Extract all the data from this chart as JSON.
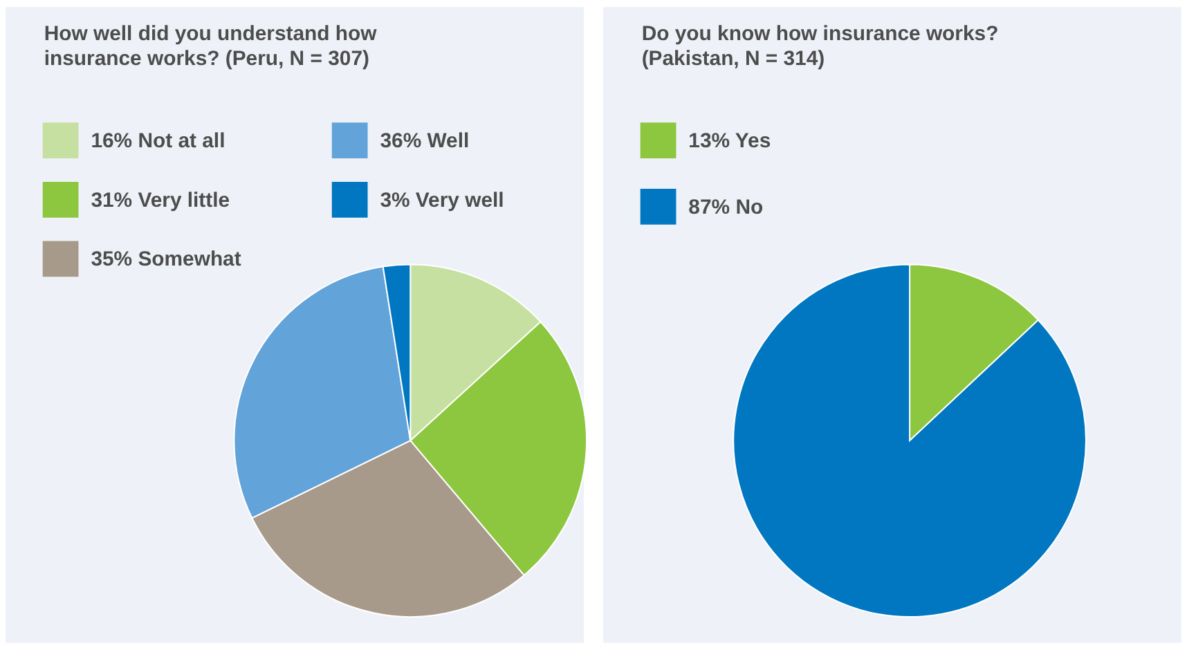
{
  "chart_data": [
    {
      "type": "pie",
      "title": "How well did you understand how insurance works? (Peru, N = 307)",
      "categories": [
        "16% Not at all",
        "31% Very little",
        "35% Somewhat",
        "36% Well",
        "3% Very well"
      ],
      "values": [
        16,
        31,
        35,
        36,
        3
      ],
      "colors": [
        "#c5e0a0",
        "#8dc63f",
        "#a89a8a",
        "#62a3d9",
        "#0077c0"
      ],
      "legend": "top left"
    },
    {
      "type": "pie",
      "title": "Do you know how insurance works? (Pakistan, N = 314)",
      "categories": [
        "13% Yes",
        "87% No"
      ],
      "values": [
        13,
        87
      ],
      "colors": [
        "#8dc63f",
        "#0077c0"
      ],
      "legend": "top left"
    }
  ]
}
